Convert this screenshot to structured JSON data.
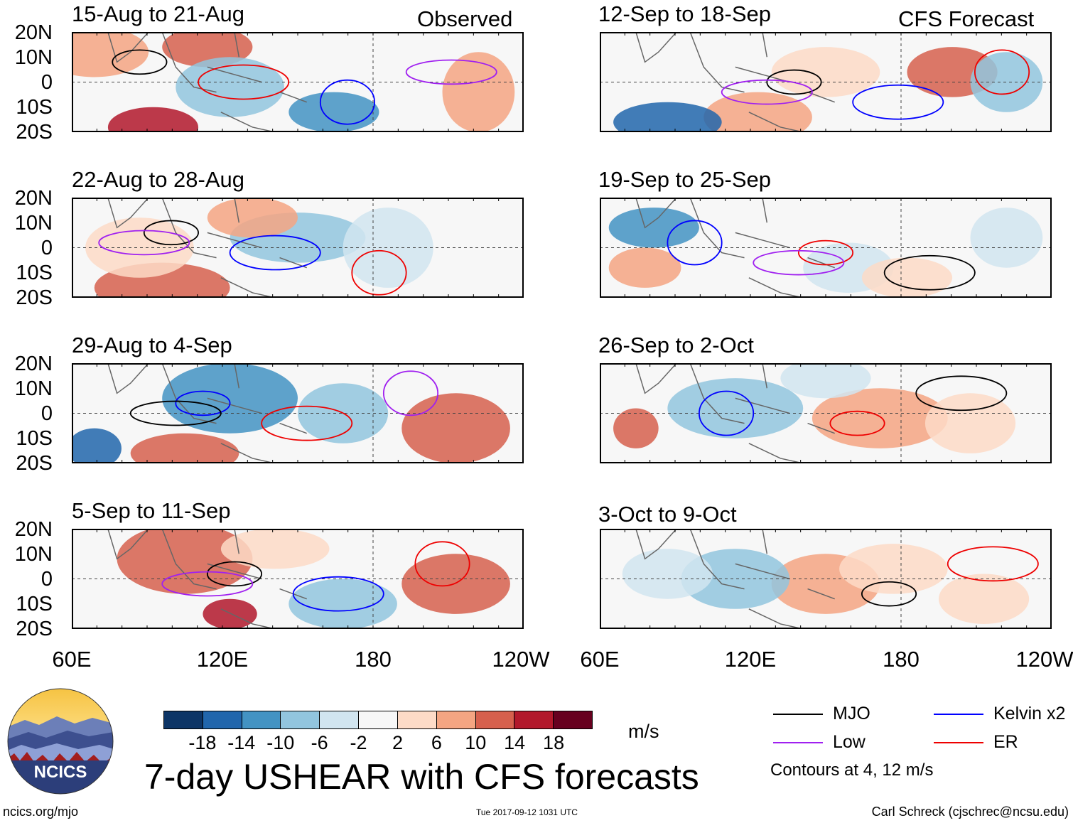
{
  "header": {
    "observed_label": "Observed",
    "forecast_label": "CFS Forecast"
  },
  "panels": [
    {
      "title": "15-Aug to 21-Aug",
      "column": "observed"
    },
    {
      "title": "22-Aug to 28-Aug",
      "column": "observed"
    },
    {
      "title": "29-Aug to 4-Sep",
      "column": "observed"
    },
    {
      "title": "5-Sep to 11-Sep",
      "column": "observed"
    },
    {
      "title": "12-Sep to 18-Sep",
      "column": "forecast"
    },
    {
      "title": "19-Sep to 25-Sep",
      "column": "forecast"
    },
    {
      "title": "26-Sep to 2-Oct",
      "column": "forecast"
    },
    {
      "title": "3-Oct to 9-Oct",
      "column": "forecast"
    }
  ],
  "chart_data": {
    "type": "heatmap",
    "title": "7-day USHEAR with CFS forecasts",
    "x_tick_labels": [
      "60E",
      "120E",
      "180",
      "120W"
    ],
    "y_tick_labels": [
      "20N",
      "10N",
      "0",
      "10S",
      "20S"
    ],
    "x_range_deg_east": [
      60,
      240
    ],
    "y_range_deg": [
      -20,
      20
    ],
    "units": "m/s",
    "colorbar": {
      "ticks": [
        "-18",
        "-14",
        "-10",
        "-6",
        "-2",
        "2",
        "6",
        "10",
        "14",
        "18"
      ],
      "colors": [
        "#0d3566",
        "#2166ac",
        "#4393c3",
        "#92c5de",
        "#d1e5f0",
        "#f7f7f7",
        "#fddbc7",
        "#f4a582",
        "#d6604d",
        "#b2182b",
        "#67001f"
      ]
    },
    "contours": {
      "note": "Contours at 4, 12 m/s",
      "series": [
        {
          "name": "MJO",
          "color": "#000000"
        },
        {
          "name": "Kelvin x2",
          "color": "#0000ff"
        },
        {
          "name": "Low",
          "color": "#a020f0"
        },
        {
          "name": "ER",
          "color": "#ee0000"
        }
      ]
    }
  },
  "logo": {
    "text": "NCICS"
  },
  "footer": {
    "site": "ncics.org/mjo",
    "timestamp": "Tue 2017-09-12 1031 UTC",
    "credit": "Carl Schreck (cjschrec@ncsu.edu)"
  }
}
